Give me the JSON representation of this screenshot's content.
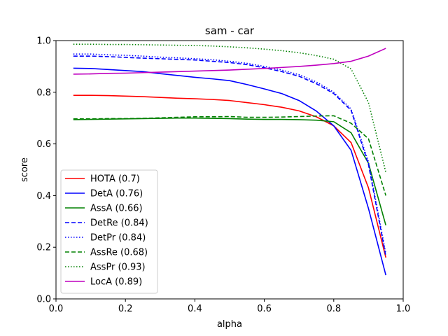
{
  "chart_data": {
    "type": "line",
    "title": "sam - car",
    "xlabel": "alpha",
    "ylabel": "score",
    "xlim": [
      0.0,
      1.0
    ],
    "ylim": [
      0.0,
      1.0
    ],
    "xticks": [
      "0.0",
      "0.2",
      "0.4",
      "0.6",
      "0.8",
      "1.0"
    ],
    "yticks": [
      "0.0",
      "0.2",
      "0.4",
      "0.6",
      "0.8",
      "1.0"
    ],
    "grid": false,
    "legend_position": "lower-left",
    "x": [
      0.05,
      0.1,
      0.15,
      0.2,
      0.25,
      0.3,
      0.35,
      0.4,
      0.45,
      0.5,
      0.55,
      0.6,
      0.65,
      0.7,
      0.75,
      0.8,
      0.85,
      0.9,
      0.95
    ],
    "series": [
      {
        "name": "HOTA (0.7)",
        "color": "#ff0000",
        "style": "solid",
        "values": [
          0.788,
          0.788,
          0.787,
          0.785,
          0.783,
          0.78,
          0.777,
          0.775,
          0.772,
          0.768,
          0.76,
          0.752,
          0.742,
          0.728,
          0.705,
          0.67,
          0.605,
          0.43,
          0.16
        ]
      },
      {
        "name": "DetA (0.76)",
        "color": "#0000ff",
        "style": "solid",
        "values": [
          0.893,
          0.892,
          0.888,
          0.884,
          0.88,
          0.872,
          0.865,
          0.858,
          0.852,
          0.845,
          0.83,
          0.813,
          0.795,
          0.768,
          0.727,
          0.67,
          0.575,
          0.35,
          0.092
        ]
      },
      {
        "name": "AssA (0.66)",
        "color": "#008000",
        "style": "solid",
        "values": [
          0.694,
          0.695,
          0.696,
          0.697,
          0.698,
          0.699,
          0.7,
          0.7,
          0.699,
          0.698,
          0.696,
          0.695,
          0.695,
          0.694,
          0.692,
          0.686,
          0.643,
          0.525,
          0.285
        ]
      },
      {
        "name": "DetRe (0.84)",
        "color": "#0000ff",
        "style": "dashed",
        "values": [
          0.94,
          0.94,
          0.938,
          0.935,
          0.932,
          0.93,
          0.927,
          0.925,
          0.92,
          0.915,
          0.907,
          0.895,
          0.88,
          0.862,
          0.833,
          0.795,
          0.73,
          0.52,
          0.165
        ]
      },
      {
        "name": "DetPr (0.84)",
        "color": "#0000ff",
        "style": "dotted",
        "values": [
          0.948,
          0.948,
          0.945,
          0.943,
          0.94,
          0.936,
          0.933,
          0.93,
          0.926,
          0.92,
          0.912,
          0.9,
          0.886,
          0.868,
          0.84,
          0.8,
          0.735,
          0.53,
          0.175
        ]
      },
      {
        "name": "AssRe (0.68)",
        "color": "#008000",
        "style": "dashed",
        "values": [
          0.697,
          0.697,
          0.698,
          0.698,
          0.699,
          0.701,
          0.703,
          0.705,
          0.705,
          0.706,
          0.703,
          0.703,
          0.704,
          0.706,
          0.708,
          0.709,
          0.68,
          0.62,
          0.4
        ]
      },
      {
        "name": "AssPr (0.93)",
        "color": "#008000",
        "style": "dotted",
        "values": [
          0.986,
          0.986,
          0.985,
          0.985,
          0.984,
          0.983,
          0.982,
          0.981,
          0.979,
          0.976,
          0.972,
          0.967,
          0.961,
          0.953,
          0.942,
          0.928,
          0.89,
          0.76,
          0.49
        ]
      },
      {
        "name": "LocA (0.89)",
        "color": "#bf00bf",
        "style": "solid",
        "values": [
          0.87,
          0.871,
          0.873,
          0.874,
          0.876,
          0.878,
          0.88,
          0.882,
          0.884,
          0.886,
          0.889,
          0.892,
          0.896,
          0.9,
          0.905,
          0.911,
          0.92,
          0.94,
          0.97
        ]
      }
    ]
  }
}
